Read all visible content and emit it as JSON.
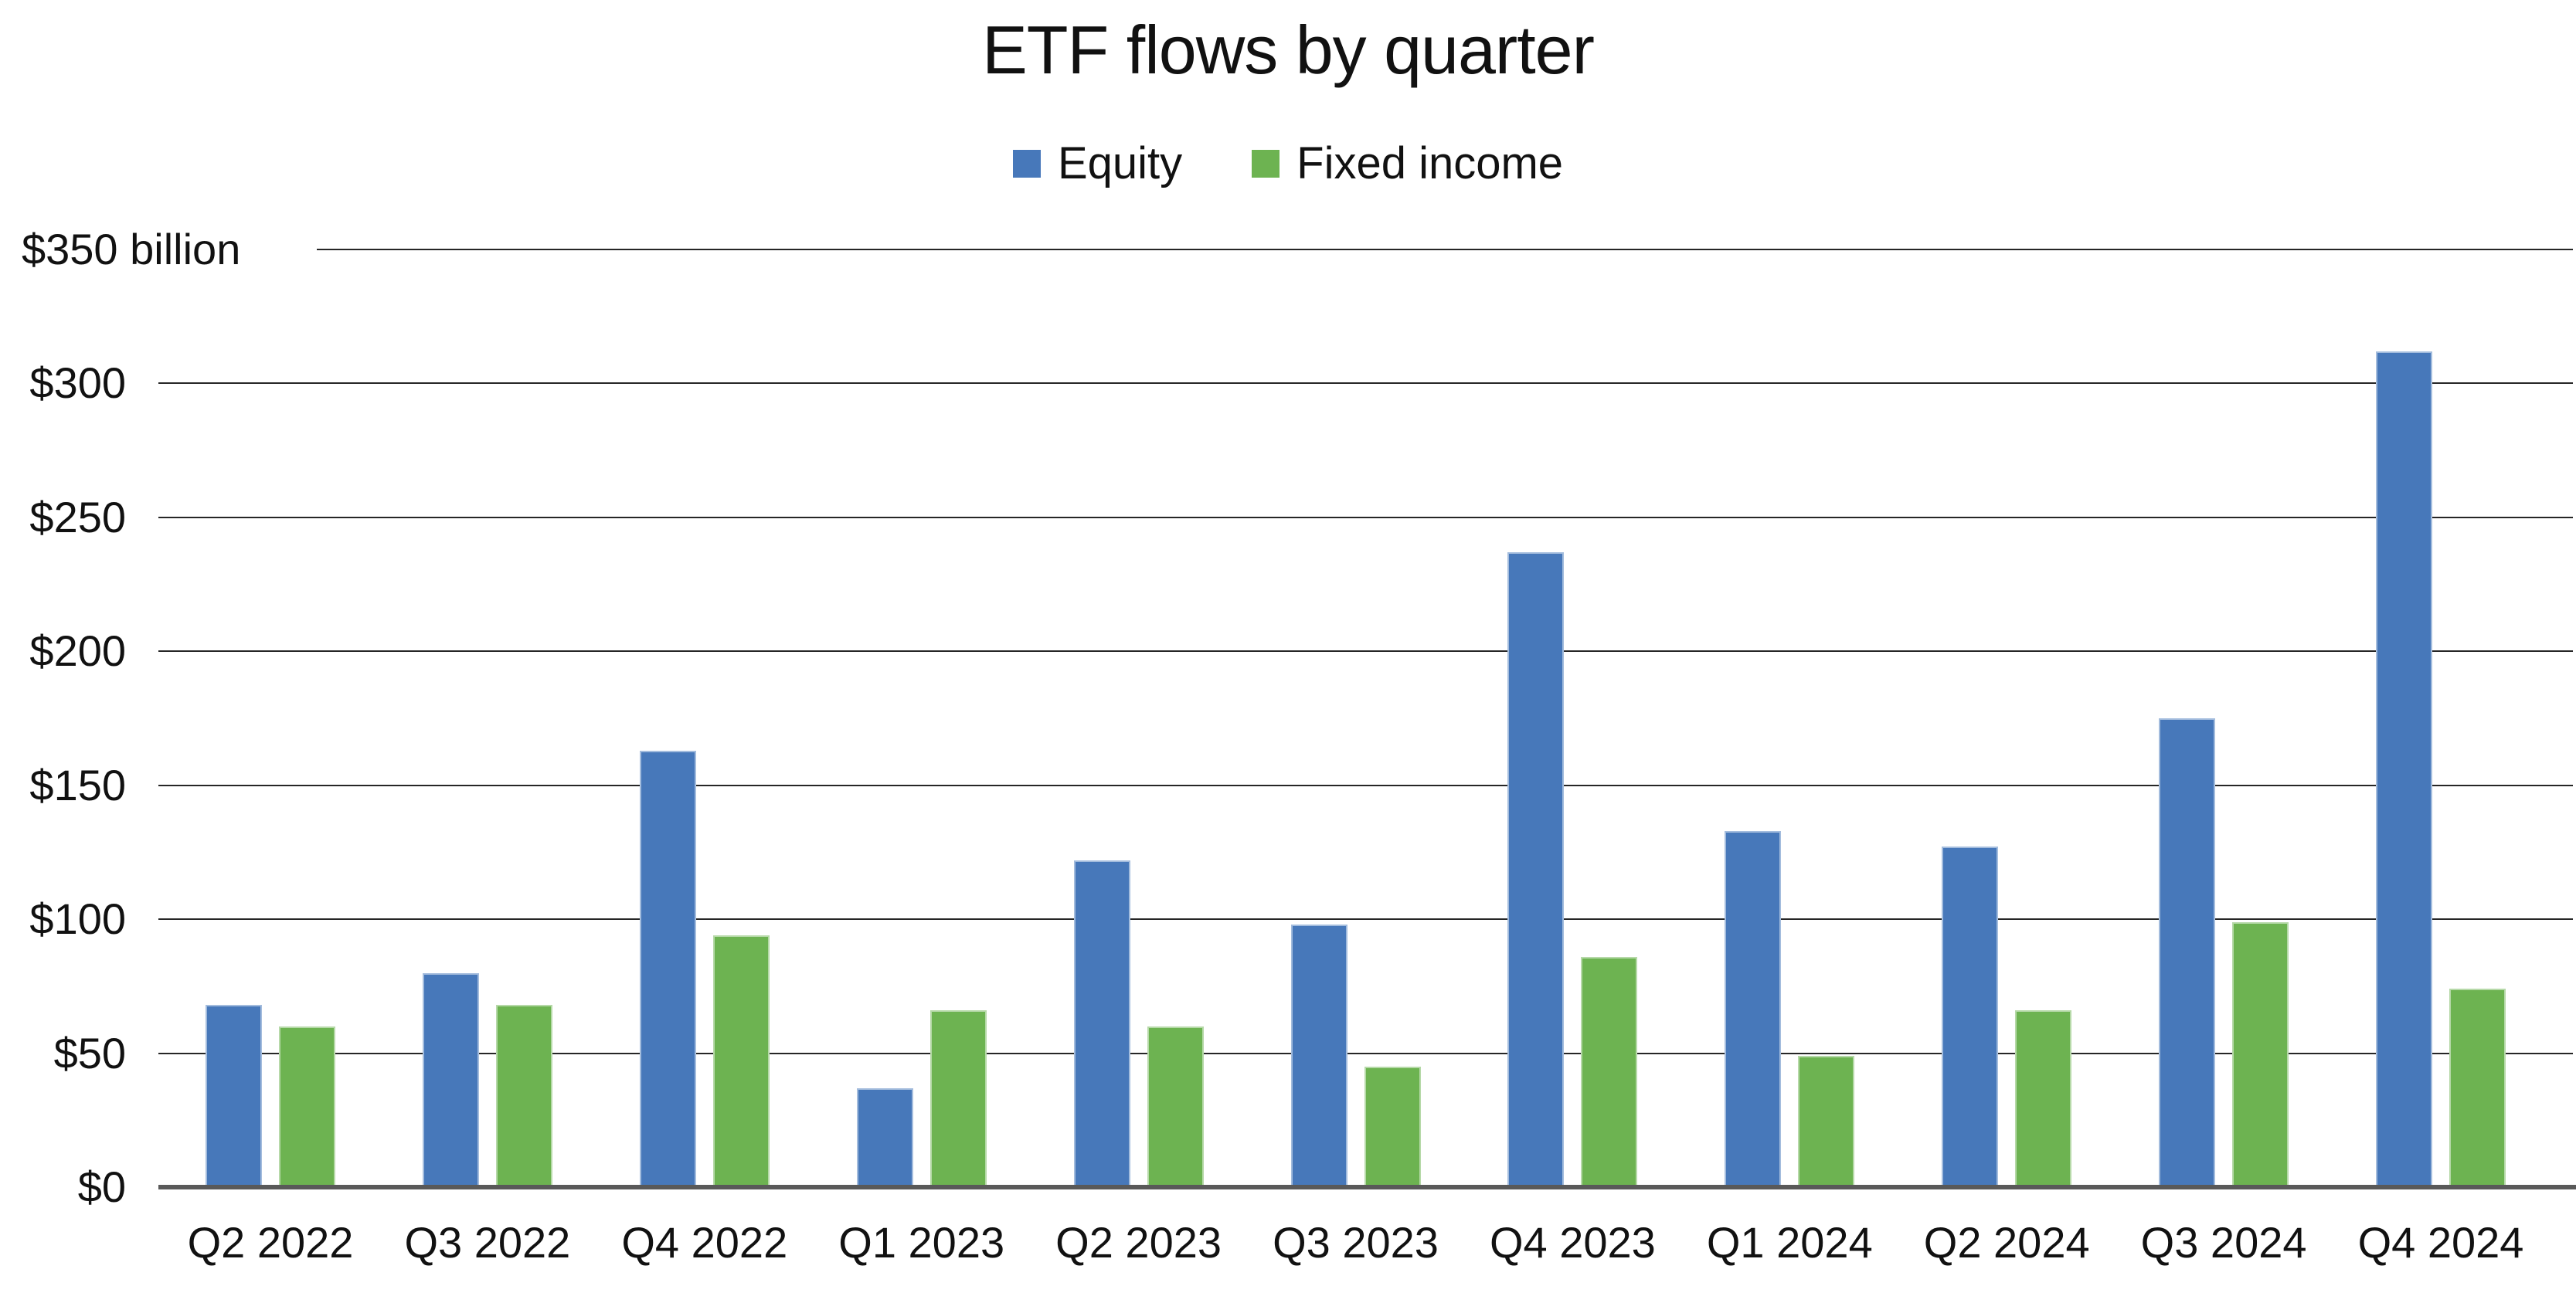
{
  "chart_data": {
    "type": "bar",
    "title": "ETF flows by quarter",
    "categories": [
      "Q2 2022",
      "Q3 2022",
      "Q4 2022",
      "Q1 2023",
      "Q2 2023",
      "Q3 2023",
      "Q4 2023",
      "Q1 2024",
      "Q2 2024",
      "Q3 2024",
      "Q4 2024"
    ],
    "series": [
      {
        "name": "Equity",
        "color": "#4778BA",
        "values": [
          68,
          80,
          163,
          37,
          122,
          98,
          237,
          133,
          127,
          175,
          312
        ]
      },
      {
        "name": "Fixed income",
        "color": "#6DB351",
        "values": [
          60,
          68,
          94,
          66,
          60,
          45,
          86,
          49,
          66,
          99,
          74
        ]
      }
    ],
    "y_ticks": [
      {
        "value": 0,
        "label": "$0"
      },
      {
        "value": 50,
        "label": "$50"
      },
      {
        "value": 100,
        "label": "$100"
      },
      {
        "value": 150,
        "label": "$150"
      },
      {
        "value": 200,
        "label": "$200"
      },
      {
        "value": 250,
        "label": "$250"
      },
      {
        "value": 300,
        "label": "$300"
      },
      {
        "value": 350,
        "label": "$350 billion"
      }
    ],
    "ylim": [
      0,
      350
    ],
    "xlabel": "",
    "ylabel": "",
    "unit": "billion USD",
    "grid": "horizontal",
    "legend_position": "top"
  },
  "colors": {
    "equity": "#4778BA",
    "fixed_income": "#6DB351",
    "gridline": "#262626",
    "axis": "#595959",
    "text": "#111111",
    "background": "#FFFFFF"
  }
}
